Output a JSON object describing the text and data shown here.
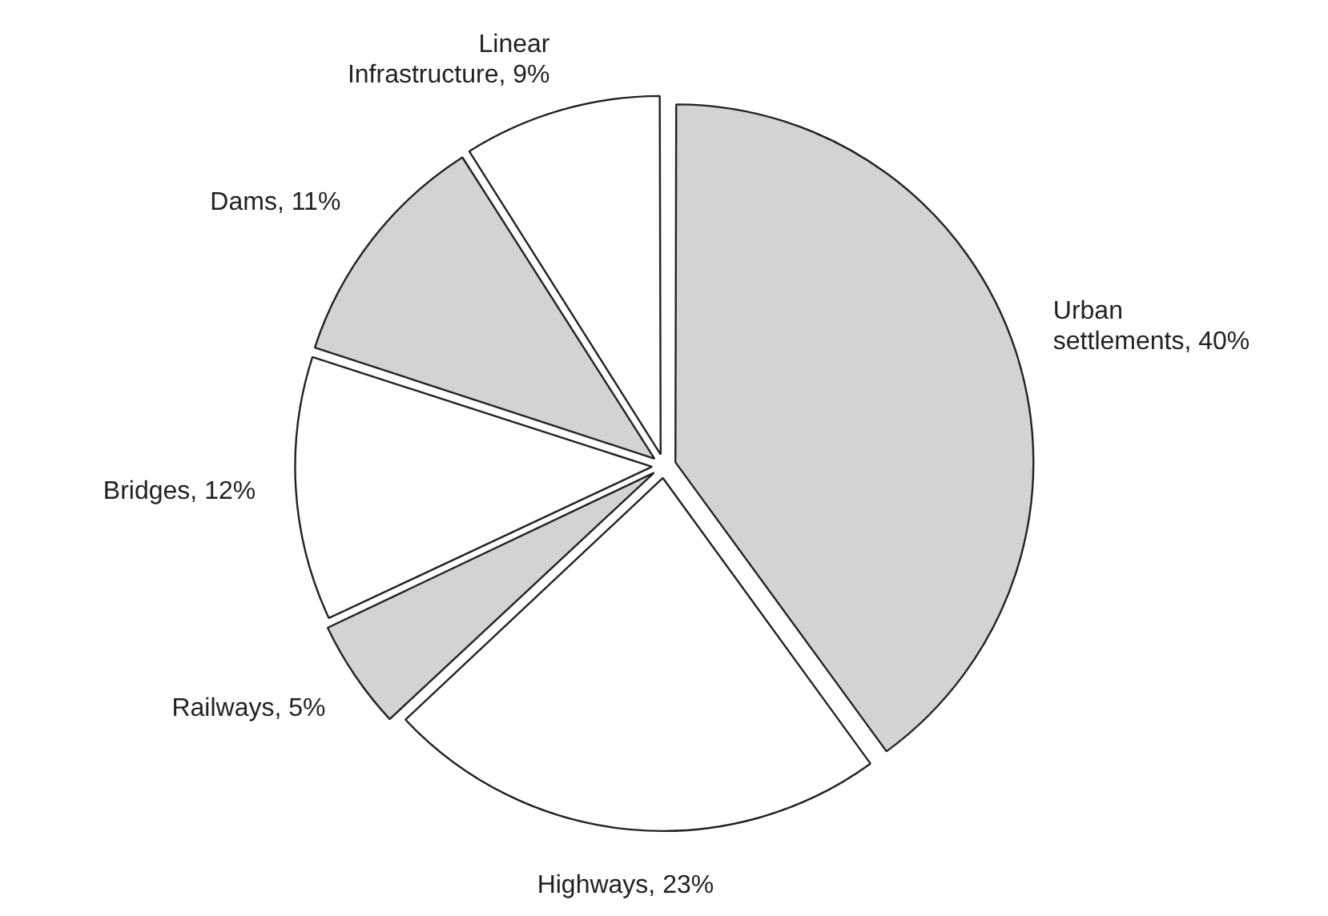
{
  "chart_data": {
    "type": "pie",
    "categories": [
      "Urban settlements",
      "Highways",
      "Railways",
      "Bridges",
      "Dams",
      "Linear Infrastructure"
    ],
    "values": [
      40,
      23,
      5,
      12,
      11,
      9
    ],
    "value_labels": [
      "40%",
      "23%",
      "5%",
      "12%",
      "11%",
      "9%"
    ],
    "colors": [
      "#d3d3d3",
      "#ffffff",
      "#d3d3d3",
      "#ffffff",
      "#d3d3d3",
      "#ffffff"
    ],
    "legend": false
  }
}
